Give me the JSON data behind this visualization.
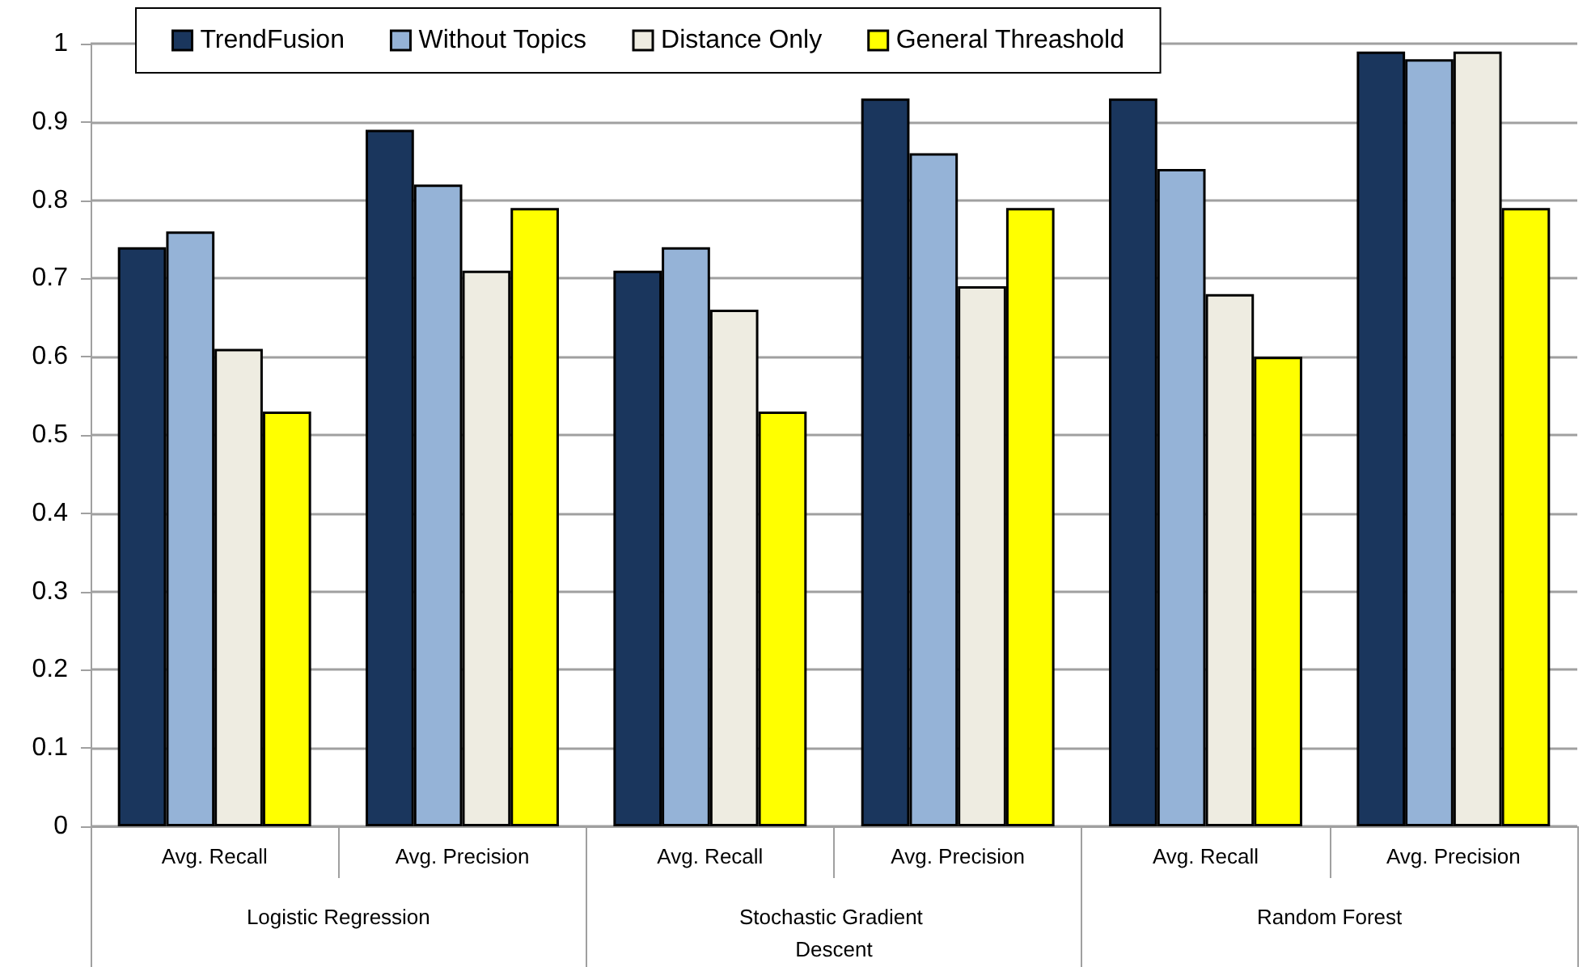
{
  "chart_data": {
    "type": "bar",
    "categories": [
      "Avg. Recall",
      "Avg. Precision",
      "Avg. Recall",
      "Avg. Precision",
      "Avg. Recall",
      "Avg. Precision"
    ],
    "series": [
      {
        "name": "TrendFusion",
        "color": "#1a365d",
        "values": [
          0.74,
          0.89,
          0.71,
          0.93,
          0.93,
          0.99
        ]
      },
      {
        "name": "Without Topics",
        "color": "#95b3d7",
        "values": [
          0.76,
          0.82,
          0.74,
          0.86,
          0.84,
          0.98
        ]
      },
      {
        "name": "Distance Only",
        "color": "#eeece1",
        "values": [
          0.61,
          0.71,
          0.66,
          0.69,
          0.68,
          0.99
        ]
      },
      {
        "name": "General Threashold",
        "color": "#ffff00",
        "values": [
          0.53,
          0.79,
          0.53,
          0.79,
          0.6,
          0.79
        ]
      }
    ],
    "annotations": [
      "Logistic Regression",
      "Stochastic Gradient Descent",
      "Random Forest"
    ],
    "ylim": [
      0,
      1
    ],
    "yticks": [
      0,
      0.1,
      0.2,
      0.3,
      0.4,
      0.5,
      0.6,
      0.7,
      0.8,
      0.9,
      1
    ],
    "grid": "y",
    "legend": "top"
  }
}
